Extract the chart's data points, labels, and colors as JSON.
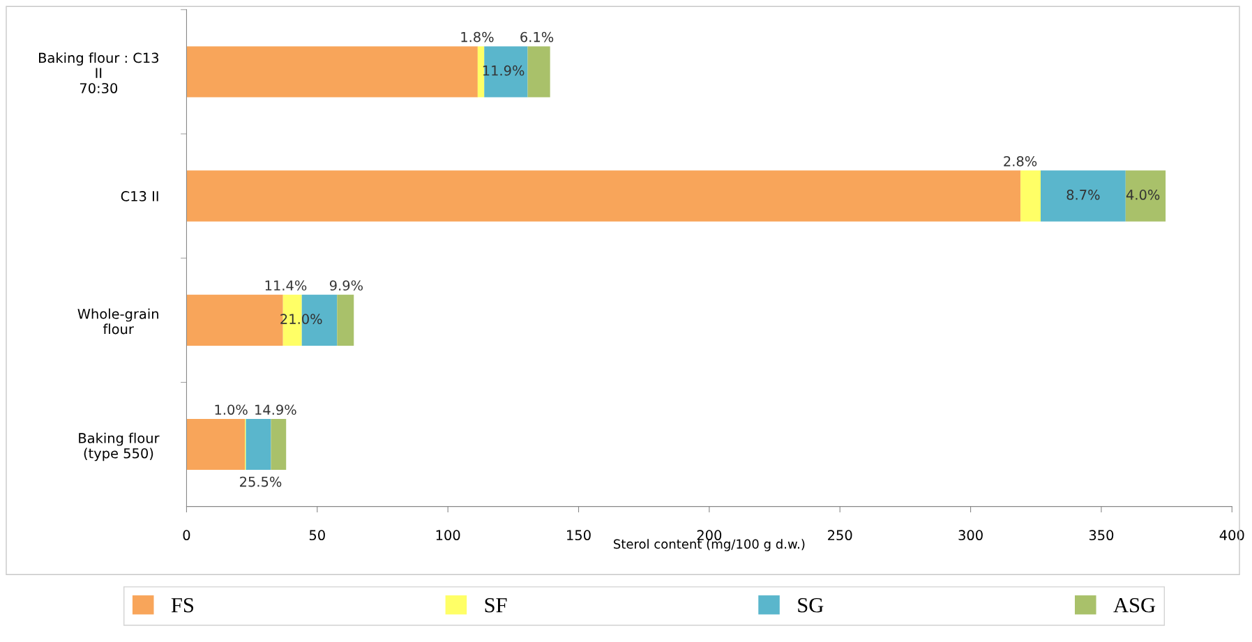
{
  "chart_data": {
    "type": "bar",
    "orientation": "horizontal",
    "stacked": true,
    "categories": [
      "Baking flour : C13\nII\n70:30",
      "C13 II",
      "Whole-grain\nflour",
      "Baking flour\n(type 550)"
    ],
    "series": [
      {
        "name": "FS",
        "color": "#f8a55a",
        "values": [
          111.4,
          319.1,
          36.9,
          22.3
        ]
      },
      {
        "name": "SF",
        "color": "#ffff66",
        "values": [
          2.5,
          7.7,
          7.2,
          0.4
        ]
      },
      {
        "name": "SG",
        "color": "#5ab6cc",
        "values": [
          16.6,
          32.5,
          13.5,
          9.6
        ]
      },
      {
        "name": "ASG",
        "color": "#a9c16a",
        "values": [
          8.6,
          15.3,
          6.4,
          5.8
        ]
      }
    ],
    "xlabel": "Sterol content (mg/100 g d.w.)",
    "xlim": [
      0,
      400
    ],
    "xticks": [
      0,
      50,
      100,
      150,
      200,
      250,
      300,
      350,
      400
    ],
    "grid": false,
    "legend": "bottom",
    "annotations": [
      "1.8%",
      "2.8%",
      "11.4%",
      "1.0%",
      "11.9%",
      "8.7%",
      "21.0%",
      "25.5%",
      "6.1%",
      "4.0%",
      "9.9%",
      "14.9%"
    ]
  }
}
